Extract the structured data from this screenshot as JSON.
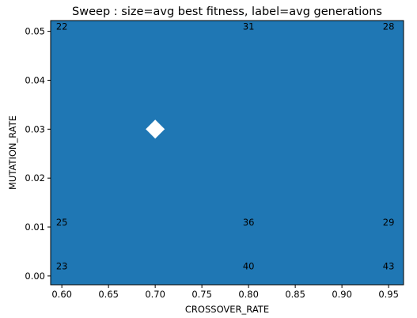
{
  "chart_data": {
    "type": "scatter",
    "title": "Sweep : size=avg best fitness, label=avg generations",
    "xlabel": "CROSSOVER_RATE",
    "ylabel": "MUTATION_RATE",
    "xlim": [
      0.588,
      0.966
    ],
    "ylim": [
      -0.0018,
      0.0522
    ],
    "xticks": [
      0.6,
      0.65,
      0.7,
      0.75,
      0.8,
      0.85,
      0.9,
      0.95
    ],
    "xtick_labels": [
      "0.60",
      "0.65",
      "0.70",
      "0.75",
      "0.80",
      "0.85",
      "0.90",
      "0.95"
    ],
    "yticks": [
      0.0,
      0.01,
      0.02,
      0.03,
      0.04,
      0.05
    ],
    "ytick_labels": [
      "0.00",
      "0.01",
      "0.02",
      "0.03",
      "0.04",
      "0.05"
    ],
    "grid": false,
    "background_color": "#1f77b4",
    "marker_color": "#ffffff",
    "points": [
      {
        "x": 0.6,
        "y": 0.051,
        "label": "22"
      },
      {
        "x": 0.8,
        "y": 0.051,
        "label": "31"
      },
      {
        "x": 0.95,
        "y": 0.051,
        "label": "28"
      },
      {
        "x": 0.6,
        "y": 0.011,
        "label": "25"
      },
      {
        "x": 0.8,
        "y": 0.011,
        "label": "36"
      },
      {
        "x": 0.95,
        "y": 0.011,
        "label": "29"
      },
      {
        "x": 0.6,
        "y": 0.002,
        "label": "23"
      },
      {
        "x": 0.8,
        "y": 0.002,
        "label": "40"
      },
      {
        "x": 0.95,
        "y": 0.002,
        "label": "43"
      }
    ],
    "highlight": {
      "x": 0.7,
      "y": 0.03,
      "marker": "diamond"
    }
  }
}
